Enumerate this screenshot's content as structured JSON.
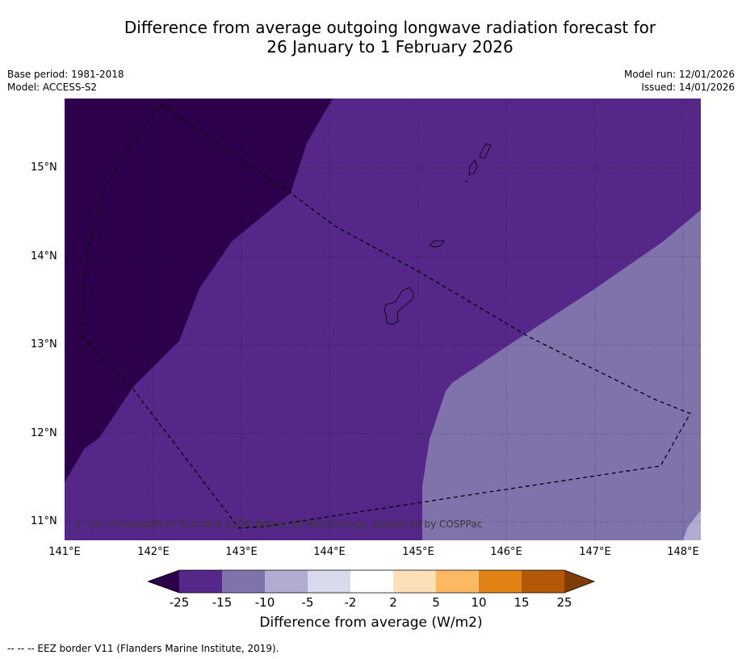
{
  "title": {
    "line1": "Difference from average outgoing longwave radiation forecast for",
    "line2": "26 January to 1 February 2026"
  },
  "meta": {
    "base_period": "Base period: 1981-2018",
    "model": "Model: ACCESS-S2",
    "model_run": "Model run: 12/01/2026",
    "issued": "Issued: 14/01/2026"
  },
  "map": {
    "lat_labels": [
      "15°N",
      "14°N",
      "13°N",
      "12°N",
      "11°N"
    ],
    "lon_labels": [
      "141°E",
      "142°E",
      "143°E",
      "144°E",
      "145°E",
      "146°E",
      "147°E",
      "148°E"
    ],
    "copyright": "© Commonwealth of Australia 2026, Bureau of Meteorology, supported by COSPPac",
    "regions": [
      {
        "class": "-25 or below",
        "color": "#2d004b"
      },
      {
        "class": "-25 to -15",
        "color": "#542788"
      },
      {
        "class": "-15 to -10",
        "color": "#8073ac"
      },
      {
        "class": "-10 to -5",
        "color": "#b2abd2"
      }
    ]
  },
  "colorbar": {
    "ticks": [
      "-25",
      "-15",
      "-10",
      "-5",
      "-2",
      "2",
      "5",
      "10",
      "15",
      "25"
    ],
    "colors": [
      "#2d004b",
      "#542788",
      "#8073ac",
      "#b2abd2",
      "#d8daeb",
      "#ffffff",
      "#fee0b6",
      "#fdb863",
      "#e08214",
      "#b35806",
      "#7f3b08"
    ],
    "label": "Difference from average (W/m2)"
  },
  "footer": "--  --  -- EEZ border V11 (Flanders Marine Institute, 2019)."
}
